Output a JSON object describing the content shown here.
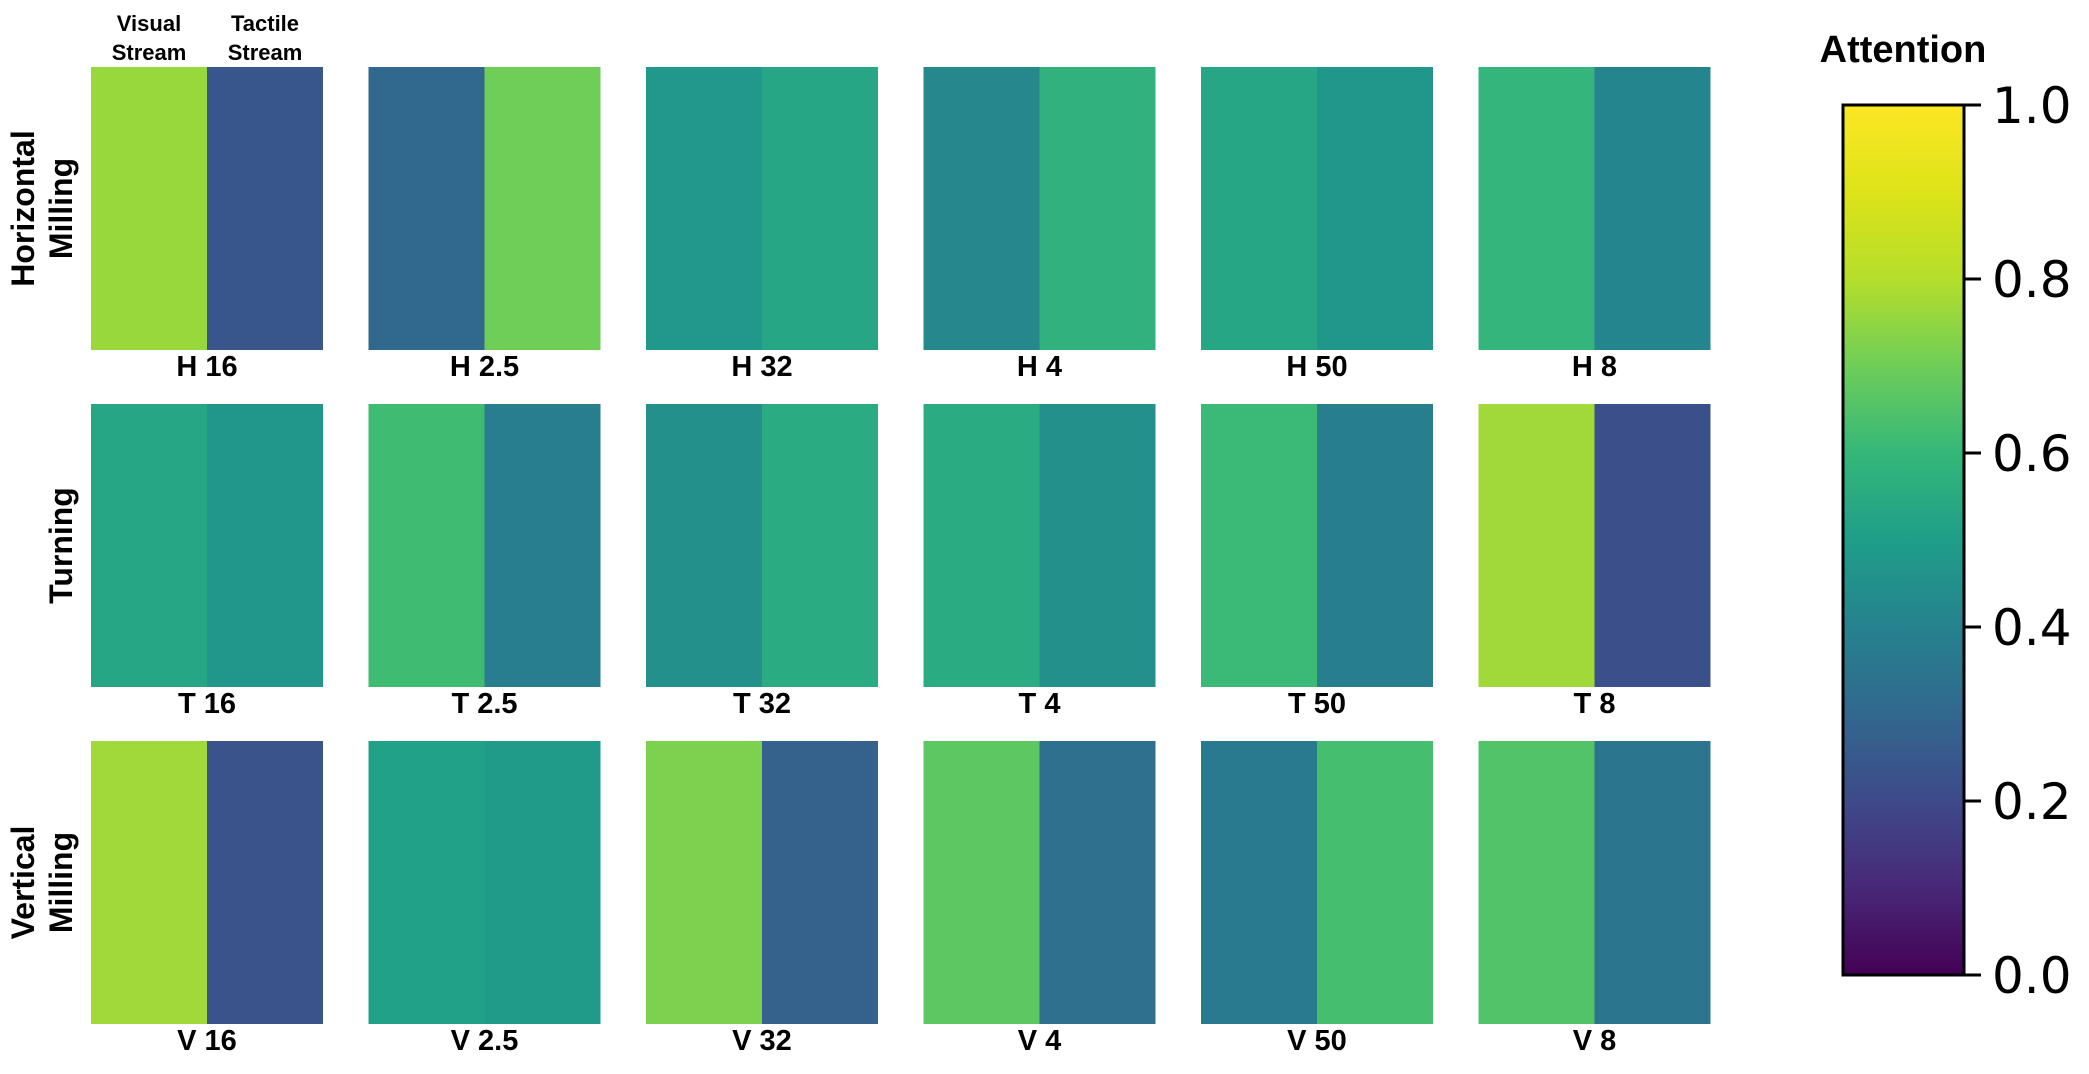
{
  "chart_data": {
    "type": "heatmap",
    "colormap": "viridis",
    "column_headers": [
      "Visual\nStream",
      "Tactile\nStream"
    ],
    "rows": [
      {
        "label": "Horizontal\nMilling",
        "cells": [
          {
            "label": "H 16",
            "values": [
              0.76,
              0.24
            ]
          },
          {
            "label": "H 2.5",
            "values": [
              0.3,
              0.7
            ]
          },
          {
            "label": "H 32",
            "values": [
              0.48,
              0.53
            ]
          },
          {
            "label": "H 4",
            "values": [
              0.42,
              0.58
            ]
          },
          {
            "label": "H 50",
            "values": [
              0.53,
              0.47
            ]
          },
          {
            "label": "H 8",
            "values": [
              0.59,
              0.41
            ]
          }
        ]
      },
      {
        "label": "Turning",
        "cells": [
          {
            "label": "T 16",
            "values": [
              0.53,
              0.47
            ]
          },
          {
            "label": "T 2.5",
            "values": [
              0.62,
              0.38
            ]
          },
          {
            "label": "T 32",
            "values": [
              0.45,
              0.55
            ]
          },
          {
            "label": "T 4",
            "values": [
              0.55,
              0.45
            ]
          },
          {
            "label": "T 50",
            "values": [
              0.61,
              0.39
            ]
          },
          {
            "label": "T 8",
            "values": [
              0.77,
              0.22
            ]
          }
        ]
      },
      {
        "label": "Vertical\nMilling",
        "cells": [
          {
            "label": "V 16",
            "values": [
              0.77,
              0.23
            ]
          },
          {
            "label": "V 2.5",
            "values": [
              0.51,
              0.49
            ]
          },
          {
            "label": "V 32",
            "values": [
              0.72,
              0.28
            ]
          },
          {
            "label": "V 4",
            "values": [
              0.67,
              0.33
            ]
          },
          {
            "label": "V 50",
            "values": [
              0.37,
              0.63
            ]
          },
          {
            "label": "V 8",
            "values": [
              0.65,
              0.35
            ]
          }
        ]
      }
    ],
    "colorbar": {
      "title": "Attention",
      "range": [
        0.0,
        1.0
      ],
      "ticks": [
        "0.0",
        "0.2",
        "0.4",
        "0.6",
        "0.8",
        "1.0"
      ]
    }
  }
}
